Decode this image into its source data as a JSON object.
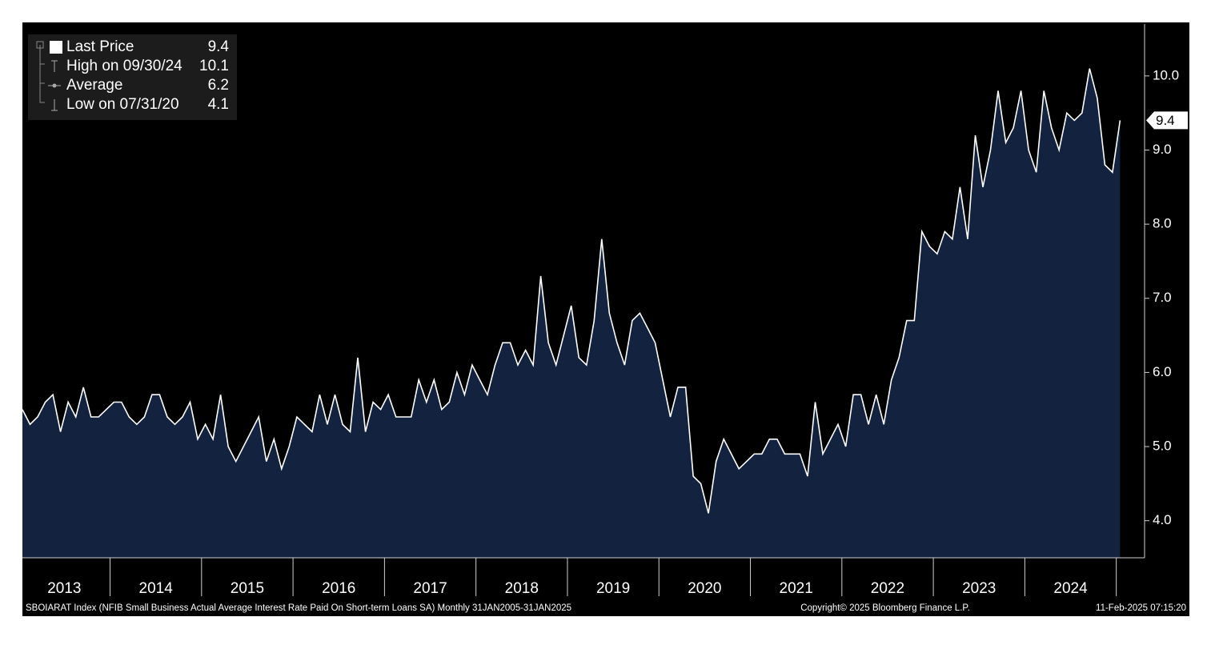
{
  "chart_data": {
    "type": "area",
    "series": [
      {
        "name": "Last Price",
        "color": "#ffffff",
        "fill": "#13223f",
        "values": [
          5.5,
          5.3,
          5.4,
          5.6,
          5.7,
          5.2,
          5.6,
          5.4,
          5.8,
          5.4,
          5.4,
          5.5,
          5.6,
          5.6,
          5.4,
          5.3,
          5.4,
          5.7,
          5.7,
          5.4,
          5.3,
          5.4,
          5.6,
          5.1,
          5.3,
          5.1,
          5.7,
          5.0,
          4.8,
          5.0,
          5.2,
          5.4,
          4.8,
          5.1,
          4.7,
          5.0,
          5.4,
          5.3,
          5.2,
          5.7,
          5.3,
          5.7,
          5.3,
          5.2,
          6.2,
          5.2,
          5.6,
          5.5,
          5.7,
          5.4,
          5.4,
          5.4,
          5.9,
          5.6,
          5.9,
          5.5,
          5.6,
          6.0,
          5.7,
          6.1,
          5.9,
          5.7,
          6.1,
          6.4,
          6.4,
          6.1,
          6.3,
          6.1,
          7.3,
          6.4,
          6.1,
          6.5,
          6.9,
          6.2,
          6.1,
          6.7,
          7.8,
          6.8,
          6.4,
          6.1,
          6.7,
          6.8,
          6.6,
          6.4,
          5.9,
          5.4,
          5.8,
          5.8,
          4.6,
          4.5,
          4.1,
          4.8,
          5.1,
          4.9,
          4.7,
          4.8,
          4.9,
          4.9,
          5.1,
          5.1,
          4.9,
          4.9,
          4.9,
          4.6,
          5.6,
          4.9,
          5.1,
          5.3,
          5.0,
          5.7,
          5.7,
          5.3,
          5.7,
          5.3,
          5.9,
          6.2,
          6.7,
          6.7,
          7.9,
          7.7,
          7.6,
          7.9,
          7.8,
          8.5,
          7.8,
          9.2,
          8.5,
          9.0,
          9.8,
          9.1,
          9.3,
          9.8,
          9.0,
          8.7,
          9.8,
          9.3,
          9.0,
          9.5,
          9.4,
          9.5,
          10.1,
          9.7,
          8.8,
          8.7,
          9.4
        ]
      }
    ],
    "x": [
      "2013-01",
      "2013-02",
      "2013-03",
      "2013-04",
      "2013-05",
      "2013-06",
      "2013-07",
      "2013-08",
      "2013-09",
      "2013-10",
      "2013-11",
      "2013-12",
      "2014-01",
      "2014-02",
      "2014-03",
      "2014-04",
      "2014-05",
      "2014-06",
      "2014-07",
      "2014-08",
      "2014-09",
      "2014-10",
      "2014-11",
      "2014-12",
      "2015-01",
      "2015-02",
      "2015-03",
      "2015-04",
      "2015-05",
      "2015-06",
      "2015-07",
      "2015-08",
      "2015-09",
      "2015-10",
      "2015-11",
      "2015-12",
      "2016-01",
      "2016-02",
      "2016-03",
      "2016-04",
      "2016-05",
      "2016-06",
      "2016-07",
      "2016-08",
      "2016-09",
      "2016-10",
      "2016-11",
      "2016-12",
      "2017-01",
      "2017-02",
      "2017-03",
      "2017-04",
      "2017-05",
      "2017-06",
      "2017-07",
      "2017-08",
      "2017-09",
      "2017-10",
      "2017-11",
      "2017-12",
      "2018-01",
      "2018-02",
      "2018-03",
      "2018-04",
      "2018-05",
      "2018-06",
      "2018-07",
      "2018-08",
      "2018-09",
      "2018-10",
      "2018-11",
      "2018-12",
      "2019-01",
      "2019-02",
      "2019-03",
      "2019-04",
      "2019-05",
      "2019-06",
      "2019-07",
      "2019-08",
      "2019-09",
      "2019-10",
      "2019-11",
      "2019-12",
      "2020-01",
      "2020-02",
      "2020-03",
      "2020-04",
      "2020-05",
      "2020-06",
      "2020-07",
      "2020-08",
      "2020-09",
      "2020-10",
      "2020-11",
      "2020-12",
      "2021-01",
      "2021-02",
      "2021-03",
      "2021-04",
      "2021-05",
      "2021-06",
      "2021-07",
      "2021-08",
      "2021-09",
      "2021-10",
      "2021-11",
      "2021-12",
      "2022-01",
      "2022-02",
      "2022-03",
      "2022-04",
      "2022-05",
      "2022-06",
      "2022-07",
      "2022-08",
      "2022-09",
      "2022-10",
      "2022-11",
      "2022-12",
      "2023-01",
      "2023-02",
      "2023-03",
      "2023-04",
      "2023-05",
      "2023-06",
      "2023-07",
      "2023-08",
      "2023-09",
      "2023-10",
      "2023-11",
      "2023-12",
      "2024-01",
      "2024-02",
      "2024-03",
      "2024-04",
      "2024-05",
      "2024-06",
      "2024-07",
      "2024-08",
      "2024-09",
      "2024-10",
      "2024-11",
      "2024-12",
      "2025-01"
    ],
    "xlim": [
      "2013-01",
      "2025-04"
    ],
    "xticks": [
      2013,
      2014,
      2015,
      2016,
      2017,
      2018,
      2019,
      2020,
      2021,
      2022,
      2023,
      2024
    ],
    "ylim": [
      3.5,
      10.7
    ],
    "yticks": [
      {
        "value": 4,
        "label": "4.0"
      },
      {
        "value": 5,
        "label": "5.0"
      },
      {
        "value": 6,
        "label": "6.0"
      },
      {
        "value": 7,
        "label": "7.0"
      },
      {
        "value": 8,
        "label": "8.0"
      },
      {
        "value": 9,
        "label": "9.0"
      },
      {
        "value": 10,
        "label": "10.0"
      }
    ],
    "stats": [
      {
        "label": "High on 09/30/24",
        "value": 10.1
      },
      {
        "label": "Average",
        "value": 6.2
      },
      {
        "label": "Low on 07/31/20",
        "value": 4.1
      }
    ],
    "footer_left": "SBOIARAT Index (NFIB Small Business Actual Average Interest Rate Paid On Short-term Loans SA)  Monthly 31JAN2005-31JAN2025",
    "footer_center": "Copyright© 2025 Bloomberg Finance L.P.",
    "footer_right": "11-Feb-2025 07:15:20"
  }
}
